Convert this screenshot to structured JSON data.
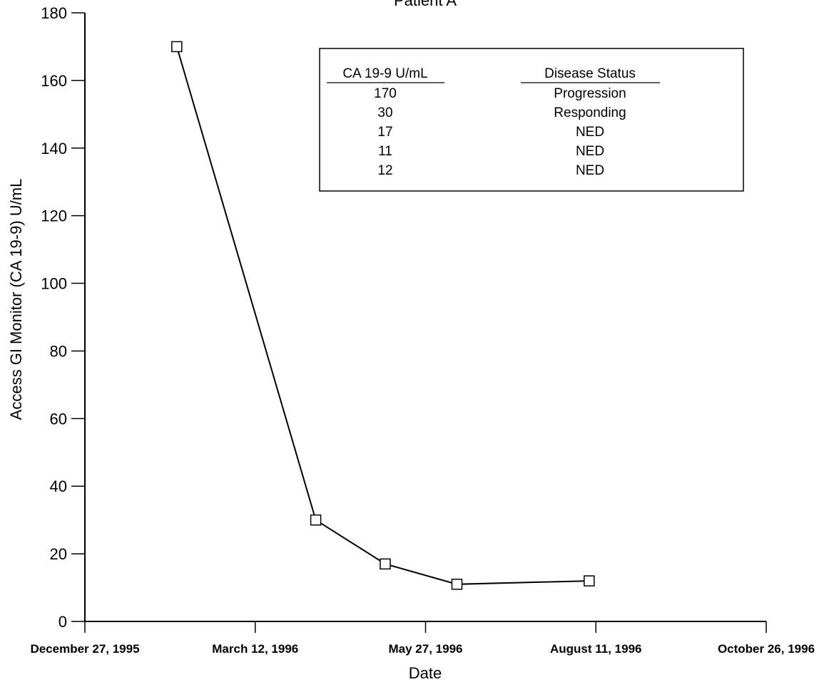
{
  "chart_data": {
    "type": "line",
    "title": "Patient A",
    "x_label": "Date",
    "y_label": "Access GI Monitor (CA 19-9) U/mL",
    "x": [
      "1996-02-06",
      "1996-04-08",
      "1996-05-09",
      "1996-06-10",
      "1996-08-08"
    ],
    "values": [
      170,
      30,
      17,
      11,
      12
    ],
    "color": "#000000",
    "marker": "square",
    "xlim": [
      "1995-12-27",
      "1996-10-26"
    ],
    "xticks": [
      {
        "value": "1995-12-27",
        "label": "December 27, 1995"
      },
      {
        "value": "1996-03-12",
        "label": "March 12, 1996"
      },
      {
        "value": "1996-05-27",
        "label": "May 27, 1996"
      },
      {
        "value": "1996-08-11",
        "label": "August 11, 1996"
      },
      {
        "value": "1996-10-26",
        "label": "October 26, 1996"
      }
    ],
    "ylim": [
      0,
      180
    ],
    "yticks": [
      0,
      20,
      40,
      60,
      80,
      100,
      120,
      140,
      160,
      180
    ],
    "grid": false
  },
  "status_table": {
    "headers": [
      "CA 19-9 U/mL",
      "Disease Status"
    ],
    "status": [
      "Progression",
      "Responding",
      "NED",
      "NED",
      "NED"
    ]
  }
}
